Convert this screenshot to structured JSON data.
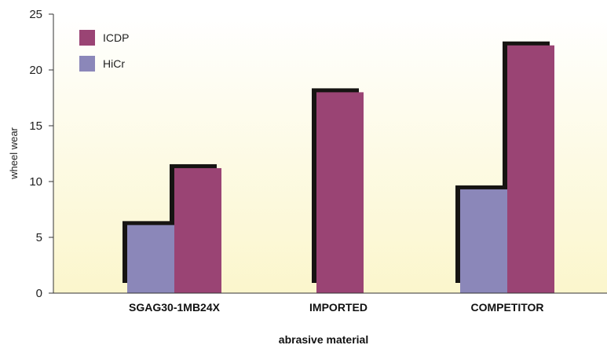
{
  "chart_data": {
    "type": "bar",
    "title": "",
    "xlabel": "abrasive material",
    "ylabel": "wheel wear",
    "ylim": [
      0,
      25
    ],
    "yticks": [
      0,
      5,
      10,
      15,
      20,
      25
    ],
    "categories": [
      "SGAG30-1MB24X",
      "IMPORTED",
      "COMPETITOR"
    ],
    "series": [
      {
        "name": "HiCr",
        "color": "#8b87b9",
        "values": [
          6.1,
          null,
          9.3
        ]
      },
      {
        "name": "ICDP",
        "color": "#9a4474",
        "values": [
          11.2,
          18.0,
          22.2
        ]
      }
    ],
    "legend_position": "top-left",
    "grid": false,
    "background_gradient": [
      "#ffffff",
      "#fbf6cc"
    ]
  }
}
